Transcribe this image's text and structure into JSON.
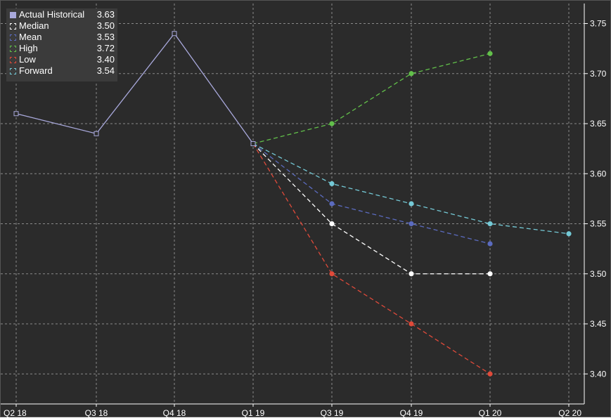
{
  "chart_data": {
    "type": "line",
    "categories": [
      "Q2 18",
      "Q3 18",
      "Q4 18",
      "Q1 19",
      "Q3 19",
      "Q4 19",
      "Q1 20",
      "Q2 20"
    ],
    "x_label": "",
    "y_label": "",
    "ylim": [
      3.37,
      3.77
    ],
    "yticks": [
      "3.40",
      "3.45",
      "3.50",
      "3.55",
      "3.60",
      "3.65",
      "3.70",
      "3.75"
    ],
    "y_axis_side": "right",
    "grid": true,
    "legend_position": "top-left",
    "series": [
      {
        "name": "Actual Historical",
        "legend_value": "3.63",
        "color": "#a9a9dc",
        "style": "solid",
        "marker": "open-square",
        "values": [
          3.66,
          3.64,
          3.74,
          3.63,
          null,
          null,
          null,
          null
        ]
      },
      {
        "name": "Median",
        "legend_value": "3.50",
        "color": "#ffffff",
        "style": "dashed",
        "marker": "dot",
        "values": [
          null,
          null,
          null,
          3.63,
          3.55,
          3.5,
          3.5,
          null
        ]
      },
      {
        "name": "Mean",
        "legend_value": "3.53",
        "color": "#5b6bbf",
        "style": "dashed",
        "marker": "dot",
        "values": [
          null,
          null,
          null,
          3.63,
          3.57,
          3.55,
          3.53,
          null
        ]
      },
      {
        "name": "High",
        "legend_value": "3.72",
        "color": "#62c04a",
        "style": "dashed",
        "marker": "dot",
        "values": [
          null,
          null,
          null,
          3.63,
          3.65,
          3.7,
          3.72,
          null
        ]
      },
      {
        "name": "Low",
        "legend_value": "3.40",
        "color": "#e04a3a",
        "style": "dashed",
        "marker": "dot",
        "values": [
          null,
          null,
          null,
          3.63,
          3.5,
          3.45,
          3.4,
          null
        ]
      },
      {
        "name": "Forward",
        "legend_value": "3.54",
        "color": "#74c9d6",
        "style": "dashed",
        "marker": "dot",
        "values": [
          null,
          null,
          null,
          3.63,
          3.59,
          3.57,
          3.55,
          3.54
        ]
      }
    ]
  }
}
